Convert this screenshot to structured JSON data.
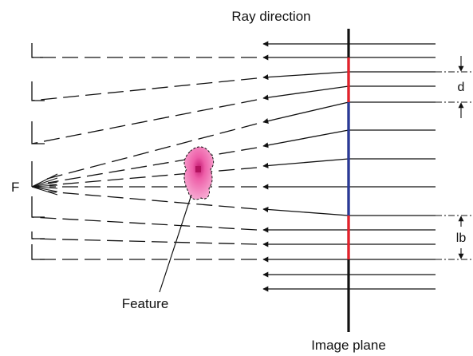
{
  "labels": {
    "ray_direction": "Ray direction",
    "image_plane": "Image plane",
    "focal_point": "F",
    "feature": "Feature",
    "d": "d",
    "lb": "lb"
  },
  "colors": {
    "line": "#111111",
    "red_segment": "#e8202a",
    "blue_segment": "#2a3a9a",
    "feature_fill": "#f277b6",
    "feature_core": "#d01f7a"
  }
}
